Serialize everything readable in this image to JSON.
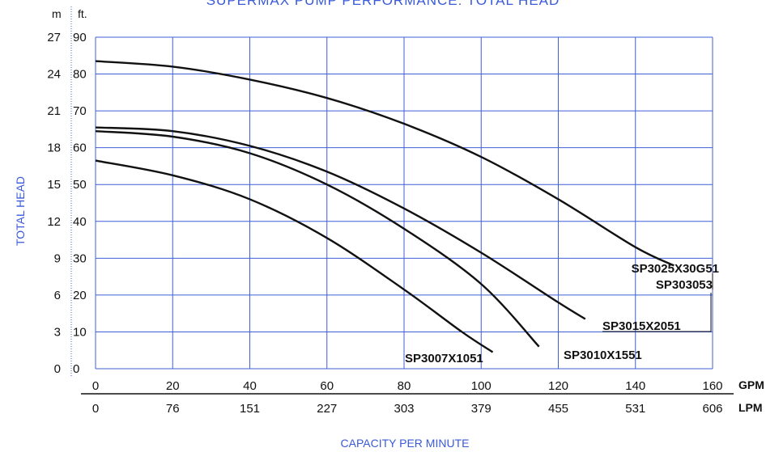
{
  "page": {
    "title": "SUPERMAX PUMP PERFORMANCE: TOTAL HEAD",
    "y_axis_label": "TOTAL HEAD",
    "x_axis_label": "CAPACITY PER MINUTE",
    "y_unit_m": "m",
    "y_unit_ft": "ft.",
    "x_unit_gpm": "GPM",
    "x_unit_lpm": "LPM"
  },
  "chart_data": {
    "type": "line",
    "title": "SUPERMAX PUMP PERFORMANCE: TOTAL HEAD",
    "xlabel": "CAPACITY PER MINUTE",
    "ylabel": "TOTAL HEAD",
    "xlim": [
      0,
      160
    ],
    "ylim": [
      0,
      90
    ],
    "x_ticks_gpm": [
      "0",
      "20",
      "40",
      "60",
      "80",
      "100",
      "120",
      "140",
      "160"
    ],
    "x_ticks_lpm": [
      "0",
      "76",
      "151",
      "227",
      "303",
      "379",
      "455",
      "531",
      "606"
    ],
    "y_ticks_ft": [
      "0",
      "10",
      "20",
      "30",
      "40",
      "50",
      "60",
      "70",
      "80",
      "90"
    ],
    "y_ticks_m": [
      "0",
      "3",
      "6",
      "9",
      "12",
      "15",
      "18",
      "21",
      "24",
      "27"
    ],
    "grid": true,
    "series": [
      {
        "name": "SP3025X30G51",
        "name2": "SP303053",
        "x": [
          0,
          20,
          40,
          60,
          80,
          100,
          120,
          140,
          150
        ],
        "y": [
          83.5,
          82.0,
          78.5,
          73.5,
          66.5,
          57.5,
          46.0,
          33.0,
          28.0
        ]
      },
      {
        "name": "SP3015X2051",
        "x": [
          0,
          20,
          40,
          60,
          80,
          100,
          120,
          127
        ],
        "y": [
          65.5,
          64.5,
          60.5,
          53.5,
          43.5,
          31.5,
          18.0,
          13.5
        ]
      },
      {
        "name": "SP3010X1551",
        "x": [
          0,
          20,
          40,
          60,
          80,
          100,
          115
        ],
        "y": [
          64.5,
          63.0,
          58.5,
          50.0,
          38.0,
          23.0,
          6.0
        ]
      },
      {
        "name": "SP3007X1051",
        "x": [
          0,
          20,
          40,
          60,
          80,
          95,
          103
        ],
        "y": [
          56.5,
          52.5,
          46.0,
          35.5,
          21.5,
          10.0,
          4.5
        ]
      }
    ]
  }
}
